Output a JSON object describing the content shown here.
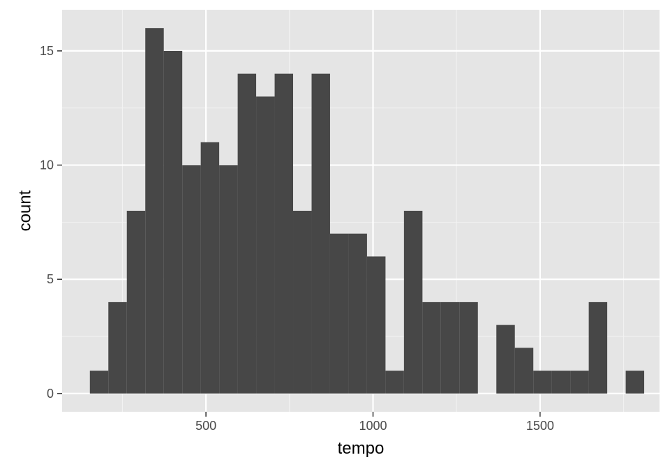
{
  "chart_data": {
    "type": "bar",
    "title": "",
    "xlabel": "tempo",
    "ylabel": "count",
    "xlim": [
      69.5,
      1857.5
    ],
    "ylim": [
      -0.8,
      16.8
    ],
    "x_ticks": [
      500,
      1000,
      1500
    ],
    "x_tick_labels": [
      "500",
      "1000",
      "1500"
    ],
    "y_ticks": [
      0,
      5,
      10,
      15
    ],
    "y_tick_labels": [
      "0",
      "5",
      "10",
      "15"
    ],
    "grid": true,
    "legend": "none",
    "bin_width": 55.3,
    "bin_start": 152.6,
    "bins": [
      {
        "x0": 152.6,
        "x1": 207.9,
        "count": 1
      },
      {
        "x0": 207.9,
        "x1": 263.2,
        "count": 4
      },
      {
        "x0": 263.2,
        "x1": 318.5,
        "count": 8
      },
      {
        "x0": 318.5,
        "x1": 373.8,
        "count": 16
      },
      {
        "x0": 373.8,
        "x1": 429.1,
        "count": 15
      },
      {
        "x0": 429.1,
        "x1": 484.4,
        "count": 10
      },
      {
        "x0": 484.4,
        "x1": 539.7,
        "count": 11
      },
      {
        "x0": 539.7,
        "x1": 595.0,
        "count": 10
      },
      {
        "x0": 595.0,
        "x1": 650.3,
        "count": 14
      },
      {
        "x0": 650.3,
        "x1": 705.6,
        "count": 13
      },
      {
        "x0": 705.6,
        "x1": 760.9,
        "count": 14
      },
      {
        "x0": 760.9,
        "x1": 816.2,
        "count": 8
      },
      {
        "x0": 816.2,
        "x1": 871.5,
        "count": 14
      },
      {
        "x0": 871.5,
        "x1": 926.8,
        "count": 7
      },
      {
        "x0": 926.8,
        "x1": 982.1,
        "count": 7
      },
      {
        "x0": 982.1,
        "x1": 1037.4,
        "count": 6
      },
      {
        "x0": 1037.4,
        "x1": 1092.7,
        "count": 1
      },
      {
        "x0": 1092.7,
        "x1": 1148.0,
        "count": 8
      },
      {
        "x0": 1148.0,
        "x1": 1203.3,
        "count": 4
      },
      {
        "x0": 1203.3,
        "x1": 1258.6,
        "count": 4
      },
      {
        "x0": 1258.6,
        "x1": 1313.9,
        "count": 4
      },
      {
        "x0": 1313.9,
        "x1": 1369.2,
        "count": 0
      },
      {
        "x0": 1369.2,
        "x1": 1424.5,
        "count": 3
      },
      {
        "x0": 1424.5,
        "x1": 1479.8,
        "count": 2
      },
      {
        "x0": 1479.8,
        "x1": 1535.1,
        "count": 1
      },
      {
        "x0": 1535.1,
        "x1": 1590.4,
        "count": 1
      },
      {
        "x0": 1590.4,
        "x1": 1645.7,
        "count": 1
      },
      {
        "x0": 1645.7,
        "x1": 1701.0,
        "count": 4
      },
      {
        "x0": 1701.0,
        "x1": 1756.3,
        "count": 0
      },
      {
        "x0": 1756.3,
        "x1": 1811.6,
        "count": 1
      }
    ],
    "colors": {
      "panel": "#e5e5e5",
      "bar": "#474747",
      "grid_major": "#ffffff",
      "grid_minor": "#f2f2f2",
      "tick_text": "#4d4d4d",
      "tick_mark": "#333333",
      "title_text": "#000000"
    }
  }
}
